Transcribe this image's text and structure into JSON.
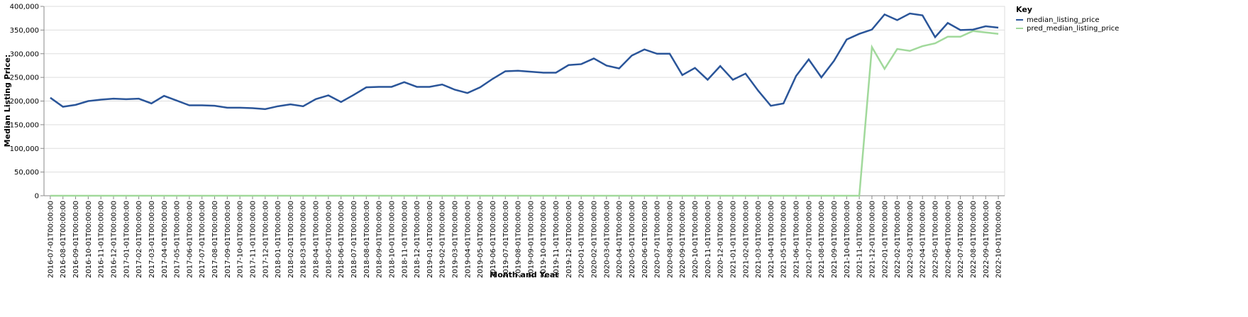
{
  "chart_data": {
    "type": "line",
    "x_label": "Month and Year",
    "y_label": "Median Listing Price:",
    "legend_title": "Key",
    "legend_position": "right",
    "grid": true,
    "categories": [
      "2016-07-01T00:00:00",
      "2016-08-01T00:00:00",
      "2016-09-01T00:00:00",
      "2016-10-01T00:00:00",
      "2016-11-01T00:00:00",
      "2016-12-01T00:00:00",
      "2017-01-01T00:00:00",
      "2017-02-01T00:00:00",
      "2017-03-01T00:00:00",
      "2017-04-01T00:00:00",
      "2017-05-01T00:00:00",
      "2017-06-01T00:00:00",
      "2017-07-01T00:00:00",
      "2017-08-01T00:00:00",
      "2017-09-01T00:00:00",
      "2017-10-01T00:00:00",
      "2017-11-01T00:00:00",
      "2017-12-01T00:00:00",
      "2018-01-01T00:00:00",
      "2018-02-01T00:00:00",
      "2018-03-01T00:00:00",
      "2018-04-01T00:00:00",
      "2018-05-01T00:00:00",
      "2018-06-01T00:00:00",
      "2018-07-01T00:00:00",
      "2018-08-01T00:00:00",
      "2018-09-01T00:00:00",
      "2018-10-01T00:00:00",
      "2018-11-01T00:00:00",
      "2018-12-01T00:00:00",
      "2019-01-01T00:00:00",
      "2019-02-01T00:00:00",
      "2019-03-01T00:00:00",
      "2019-04-01T00:00:00",
      "2019-05-01T00:00:00",
      "2019-06-01T00:00:00",
      "2019-07-01T00:00:00",
      "2019-08-01T00:00:00",
      "2019-09-01T00:00:00",
      "2019-10-01T00:00:00",
      "2019-11-01T00:00:00",
      "2019-12-01T00:00:00",
      "2020-01-01T00:00:00",
      "2020-02-01T00:00:00",
      "2020-03-01T00:00:00",
      "2020-04-01T00:00:00",
      "2020-05-01T00:00:00",
      "2020-06-01T00:00:00",
      "2020-07-01T00:00:00",
      "2020-08-01T00:00:00",
      "2020-09-01T00:00:00",
      "2020-10-01T00:00:00",
      "2020-11-01T00:00:00",
      "2020-12-01T00:00:00",
      "2021-01-01T00:00:00",
      "2021-02-01T00:00:00",
      "2021-03-01T00:00:00",
      "2021-04-01T00:00:00",
      "2021-05-01T00:00:00",
      "2021-06-01T00:00:00",
      "2021-07-01T00:00:00",
      "2021-08-01T00:00:00",
      "2021-09-01T00:00:00",
      "2021-10-01T00:00:00",
      "2021-11-01T00:00:00",
      "2021-12-01T00:00:00",
      "2022-01-01T00:00:00",
      "2022-02-01T00:00:00",
      "2022-03-01T00:00:00",
      "2022-04-01T00:00:00",
      "2022-05-01T00:00:00",
      "2022-06-01T00:00:00",
      "2022-07-01T00:00:00",
      "2022-08-01T00:00:00",
      "2022-09-01T00:00:00",
      "2022-10-01T00:00:00"
    ],
    "series": [
      {
        "name": "median_listing_price",
        "color": "#2a5599",
        "values": [
          207000,
          188000,
          192000,
          200000,
          203000,
          205000,
          204000,
          205000,
          195000,
          211000,
          201000,
          191000,
          191000,
          190000,
          186000,
          186000,
          185000,
          183000,
          189000,
          193000,
          189000,
          204000,
          212000,
          198000,
          213000,
          229000,
          230000,
          230000,
          240000,
          230000,
          230000,
          235000,
          224000,
          217000,
          229000,
          247000,
          263000,
          264000,
          262000,
          260000,
          260000,
          276000,
          278000,
          290000,
          275000,
          269000,
          296000,
          309000,
          300000,
          300000,
          255000,
          270000,
          245000,
          274000,
          245000,
          258000,
          222000,
          190000,
          195000,
          253000,
          288000,
          250000,
          285000,
          330000,
          342000,
          351000,
          383000,
          371000,
          385000,
          381000,
          335000,
          365000,
          350000,
          351000,
          358000,
          355000
        ]
      },
      {
        "name": "pred_median_listing_price",
        "color": "#a1d99b",
        "values": [
          0,
          0,
          0,
          0,
          0,
          0,
          0,
          0,
          0,
          0,
          0,
          0,
          0,
          0,
          0,
          0,
          0,
          0,
          0,
          0,
          0,
          0,
          0,
          0,
          0,
          0,
          0,
          0,
          0,
          0,
          0,
          0,
          0,
          0,
          0,
          0,
          0,
          0,
          0,
          0,
          0,
          0,
          0,
          0,
          0,
          0,
          0,
          0,
          0,
          0,
          0,
          0,
          0,
          0,
          0,
          0,
          0,
          0,
          0,
          0,
          0,
          0,
          0,
          0,
          0,
          314000,
          268000,
          310000,
          306000,
          316000,
          322000,
          336000,
          336000,
          348000,
          345000,
          342000
        ]
      }
    ],
    "ylim": [
      0,
      400000
    ],
    "yticks": [
      0,
      {
        "value": 50000,
        "label": "50,000"
      },
      {
        "value": 100000,
        "label": "100,000"
      },
      {
        "value": 150000,
        "label": "150,000"
      },
      {
        "value": 200000,
        "label": "200,000"
      },
      {
        "value": 250000,
        "label": "250,000"
      },
      {
        "value": 300000,
        "label": "300,000"
      },
      {
        "value": 350000,
        "label": "350,000"
      },
      {
        "value": 400000,
        "label": "400,000"
      }
    ]
  }
}
